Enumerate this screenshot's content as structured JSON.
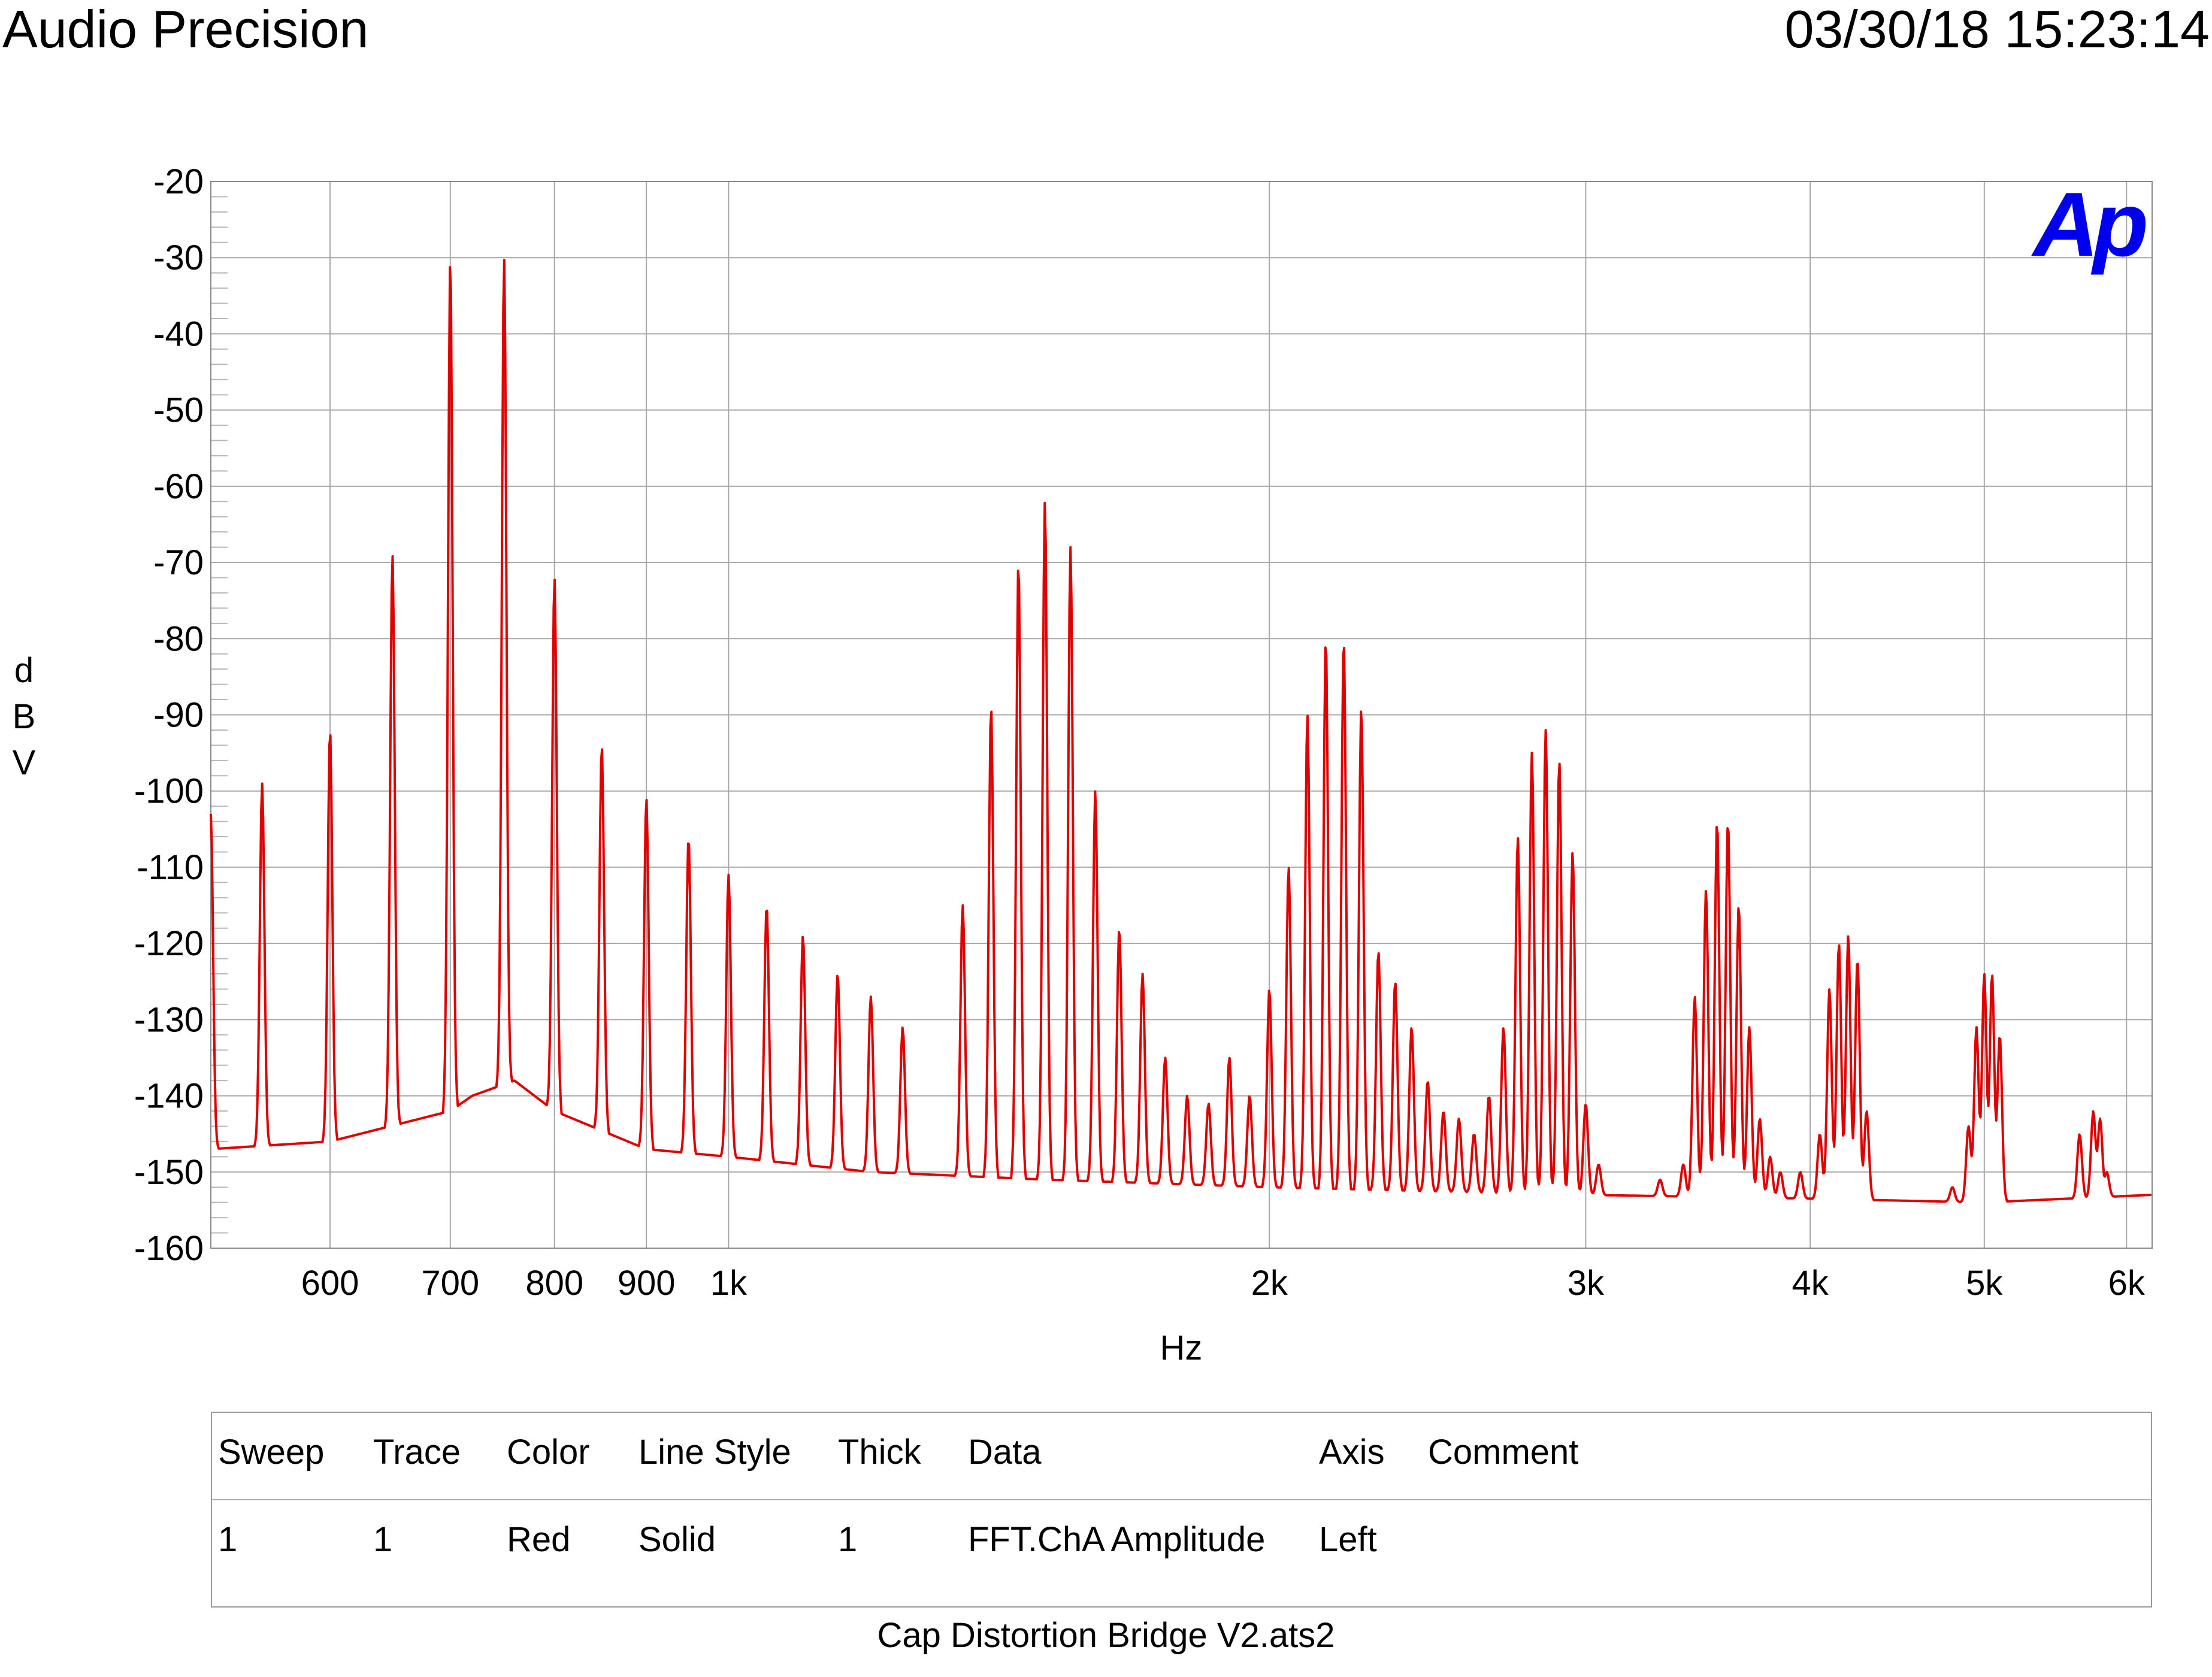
{
  "header": {
    "app": "Audio Precision",
    "timestamp": "03/30/18 15:23:14"
  },
  "logo": {
    "text": "Ap",
    "color": "#0000ee"
  },
  "chart_data": {
    "type": "line",
    "title": "",
    "xlabel": "Hz",
    "ylabel_letters": [
      "d",
      "B",
      "V"
    ],
    "x_scale": "log",
    "xlim": [
      515,
      6200
    ],
    "ylim": [
      -160,
      -20
    ],
    "y_ticks": [
      -20,
      -30,
      -40,
      -50,
      -60,
      -70,
      -80,
      -90,
      -100,
      -110,
      -120,
      -130,
      -140,
      -150,
      -160
    ],
    "x_ticks": [
      {
        "value": 600,
        "label": "600"
      },
      {
        "value": 700,
        "label": "700"
      },
      {
        "value": 800,
        "label": "800"
      },
      {
        "value": 900,
        "label": "900"
      },
      {
        "value": 1000,
        "label": "1k"
      },
      {
        "value": 2000,
        "label": "2k"
      },
      {
        "value": 3000,
        "label": "3k"
      },
      {
        "value": 4000,
        "label": "4k"
      },
      {
        "value": 5000,
        "label": "5k"
      },
      {
        "value": 6000,
        "label": "6k"
      }
    ],
    "x_gridlines": [
      600,
      700,
      800,
      900,
      1000,
      2000,
      3000,
      4000,
      5000,
      6000
    ],
    "grid": true,
    "series": [
      {
        "color": "#e00000",
        "noise_floor": [
          [
            515,
            -147
          ],
          [
            600,
            -146
          ],
          [
            700,
            -142
          ],
          [
            720,
            -140
          ],
          [
            760,
            -138
          ],
          [
            800,
            -142
          ],
          [
            900,
            -147
          ],
          [
            1000,
            -148
          ],
          [
            1200,
            -150
          ],
          [
            1500,
            -151
          ],
          [
            2000,
            -152
          ],
          [
            3000,
            -153
          ],
          [
            4000,
            -153.5
          ],
          [
            5000,
            -154
          ],
          [
            6200,
            -153
          ]
        ],
        "peaks": [
          [
            515,
            -103
          ],
          [
            550,
            -99
          ],
          [
            600,
            -92
          ],
          [
            650,
            -69
          ],
          [
            700,
            -30
          ],
          [
            750,
            -30
          ],
          [
            800,
            -72
          ],
          [
            850,
            -94
          ],
          [
            900,
            -101
          ],
          [
            950,
            -106
          ],
          [
            1000,
            -111
          ],
          [
            1050,
            -115
          ],
          [
            1100,
            -119
          ],
          [
            1150,
            -124
          ],
          [
            1200,
            -127
          ],
          [
            1250,
            -131
          ],
          [
            1350,
            -115
          ],
          [
            1400,
            -89
          ],
          [
            1450,
            -70
          ],
          [
            1500,
            -62
          ],
          [
            1550,
            -68
          ],
          [
            1600,
            -100
          ],
          [
            1650,
            -118
          ],
          [
            1700,
            -124
          ],
          [
            1750,
            -135
          ],
          [
            1800,
            -140
          ],
          [
            1850,
            -141
          ],
          [
            1900,
            -135
          ],
          [
            1950,
            -140
          ],
          [
            2000,
            -126
          ],
          [
            2050,
            -110
          ],
          [
            2100,
            -90
          ],
          [
            2150,
            -80
          ],
          [
            2200,
            -80
          ],
          [
            2250,
            -89
          ],
          [
            2300,
            -121
          ],
          [
            2350,
            -125
          ],
          [
            2400,
            -131
          ],
          [
            2450,
            -138
          ],
          [
            2500,
            -142
          ],
          [
            2550,
            -143
          ],
          [
            2600,
            -145
          ],
          [
            2650,
            -140
          ],
          [
            2700,
            -131
          ],
          [
            2750,
            -106
          ],
          [
            2800,
            -95
          ],
          [
            2850,
            -92
          ],
          [
            2900,
            -96
          ],
          [
            2950,
            -108
          ],
          [
            3000,
            -141
          ],
          [
            3050,
            -149
          ],
          [
            3300,
            -151
          ],
          [
            3400,
            -149
          ],
          [
            3450,
            -127
          ],
          [
            3500,
            -113
          ],
          [
            3550,
            -104
          ],
          [
            3600,
            -104
          ],
          [
            3650,
            -115
          ],
          [
            3700,
            -131
          ],
          [
            3750,
            -143
          ],
          [
            3800,
            -148
          ],
          [
            3850,
            -150
          ],
          [
            3950,
            -150
          ],
          [
            4050,
            -145
          ],
          [
            4100,
            -126
          ],
          [
            4150,
            -120
          ],
          [
            4200,
            -119
          ],
          [
            4250,
            -122
          ],
          [
            4300,
            -142
          ],
          [
            4800,
            -152
          ],
          [
            4900,
            -144
          ],
          [
            4950,
            -131
          ],
          [
            5000,
            -124
          ],
          [
            5050,
            -124
          ],
          [
            5100,
            -132
          ],
          [
            5650,
            -145
          ],
          [
            5750,
            -142
          ],
          [
            5800,
            -143
          ],
          [
            5850,
            -150
          ]
        ]
      }
    ]
  },
  "legend_table": {
    "headers": [
      "Sweep",
      "Trace",
      "Color",
      "Line Style",
      "Thick",
      "Data",
      "Axis",
      "Comment"
    ],
    "rows": [
      [
        "1",
        "1",
        "Red",
        "Solid",
        "1",
        "FFT.ChA Amplitude",
        "Left",
        ""
      ]
    ]
  },
  "footer": {
    "file_name": "Cap Distortion Bridge V2.ats2"
  }
}
